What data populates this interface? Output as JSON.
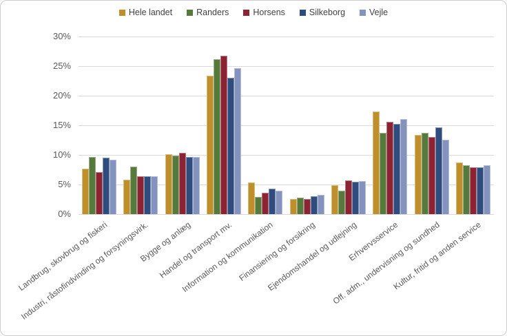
{
  "chart_data": {
    "type": "bar",
    "title": "",
    "categories": [
      "Landbrug, skovbrug og fiskeri",
      "Industri, råstofindvinding og forsyningsvirk.",
      "Bygge og anlæg",
      "Handel og transport mv.",
      "Information og kommunikation",
      "Finansiering og forsikring",
      "Ejendomshandel og udlejning",
      "Erhvervsservice",
      "Off. adm., undervisning og sundhed",
      "Kultur, fritid og anden service"
    ],
    "series": [
      {
        "name": "Hele landet",
        "color": "#BF8F2B",
        "values": [
          7.7,
          5.8,
          10.1,
          23.4,
          5.4,
          2.6,
          4.9,
          17.3,
          13.4,
          8.7
        ]
      },
      {
        "name": "Randers",
        "color": "#567A3B",
        "values": [
          9.6,
          8.0,
          9.9,
          26.2,
          2.9,
          2.8,
          4.0,
          13.7,
          13.7,
          8.2
        ]
      },
      {
        "name": "Horsens",
        "color": "#8B2333",
        "values": [
          7.1,
          6.4,
          10.4,
          26.8,
          3.6,
          2.6,
          5.7,
          15.6,
          13.0,
          7.9
        ]
      },
      {
        "name": "Silkeborg",
        "color": "#2E4D7E",
        "values": [
          9.5,
          6.4,
          9.6,
          23.0,
          4.3,
          3.0,
          5.5,
          15.2,
          14.6,
          7.9
        ]
      },
      {
        "name": "Vejle",
        "color": "#8393BE",
        "values": [
          9.2,
          6.4,
          9.6,
          24.6,
          4.0,
          3.2,
          5.6,
          16.1,
          12.5,
          8.2
        ]
      }
    ],
    "y_ticks": [
      "0%",
      "5%",
      "10%",
      "15%",
      "20%",
      "25%",
      "30%"
    ],
    "ylim": [
      0,
      30
    ],
    "y_unit": "%",
    "grid": true,
    "legend_position": "top",
    "colors": {
      "gridline": "#D9D9D9",
      "axis_text": "#595959",
      "legend_text": "#404040"
    }
  }
}
